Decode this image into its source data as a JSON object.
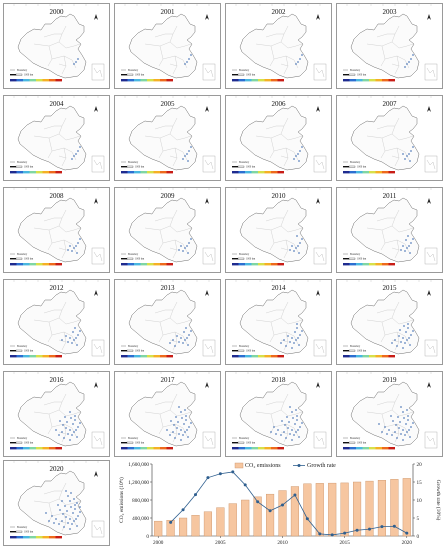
{
  "panels": [
    {
      "year": "2000",
      "density": 0.06
    },
    {
      "year": "2001",
      "density": 0.07
    },
    {
      "year": "2002",
      "density": 0.08
    },
    {
      "year": "2003",
      "density": 0.09
    },
    {
      "year": "2004",
      "density": 0.1
    },
    {
      "year": "2005",
      "density": 0.11
    },
    {
      "year": "2006",
      "density": 0.12
    },
    {
      "year": "2007",
      "density": 0.13
    },
    {
      "year": "2008",
      "density": 0.15
    },
    {
      "year": "2009",
      "density": 0.16
    },
    {
      "year": "2010",
      "density": 0.18
    },
    {
      "year": "2011",
      "density": 0.2
    },
    {
      "year": "2012",
      "density": 0.24
    },
    {
      "year": "2013",
      "density": 0.28
    },
    {
      "year": "2014",
      "density": 0.32
    },
    {
      "year": "2015",
      "density": 0.36
    },
    {
      "year": "2016",
      "density": 0.45
    },
    {
      "year": "2017",
      "density": 0.5
    },
    {
      "year": "2018",
      "density": 0.55
    },
    {
      "year": "2019",
      "density": 0.6
    },
    {
      "year": "2020",
      "density": 0.7
    }
  ],
  "map_legend": {
    "scale_text": "1000 km",
    "boundary_text": "Boundary"
  },
  "colors": {
    "bar_fill": "#f6c6a0",
    "bar_stroke": "#c98f63",
    "line": "#2f5f8f",
    "marker": "#2f5f8f",
    "emission_dot": "#2a5ca8",
    "colorbar": [
      "#1f2b8f",
      "#2c6fd1",
      "#49b7e0",
      "#7fd6a3",
      "#d8e04a",
      "#f5b025",
      "#ee6a1c",
      "#c81d16"
    ]
  },
  "chart_data": {
    "type": "bar",
    "categories": [
      "2000",
      "2001",
      "2002",
      "2003",
      "2004",
      "2005",
      "2006",
      "2007",
      "2008",
      "2009",
      "2010",
      "2011",
      "2012",
      "2013",
      "2014",
      "2015",
      "2016",
      "2017",
      "2018",
      "2019",
      "2020"
    ],
    "series": [
      {
        "name": "CO₂ emissions",
        "kind": "bar",
        "axis": "left",
        "values": [
          330000,
          350000,
          400000,
          460000,
          540000,
          630000,
          720000,
          800000,
          870000,
          930000,
          1010000,
          1100000,
          1160000,
          1170000,
          1175000,
          1180000,
          1200000,
          1220000,
          1240000,
          1260000,
          1280000
        ]
      },
      {
        "name": "Growth rate",
        "kind": "line",
        "axis": "right",
        "values": [
          null,
          3.8,
          7.3,
          11.5,
          16.2,
          17.3,
          17.8,
          14.2,
          9.5,
          7.0,
          8.6,
          11.4,
          4.8,
          0.6,
          0.3,
          0.8,
          1.6,
          1.9,
          2.6,
          2.7,
          0.8
        ]
      }
    ],
    "ylabel": "CO₂ emissions (10⁴t)",
    "y2label": "Growth rate (10%)",
    "ylim": [
      0,
      1600000
    ],
    "y2lim": [
      0,
      20
    ],
    "yticks": [
      "0",
      "400,000",
      "800,000",
      "1,200,000",
      "1,600,000"
    ],
    "y2ticks": [
      "0",
      "5",
      "10",
      "15",
      "20"
    ],
    "xticks": [
      "2000",
      "2005",
      "2010",
      "2015",
      "2020"
    ],
    "legend_position": "top-center"
  }
}
